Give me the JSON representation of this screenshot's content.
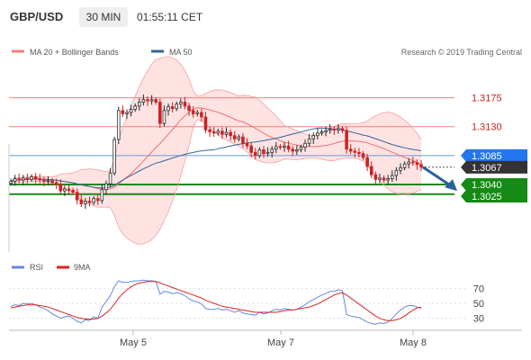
{
  "header": {
    "symbol": "GBP/USD",
    "timeframe": "30 MIN",
    "time": "01:55:11 CET"
  },
  "legend_top": [
    {
      "label": "MA 20 + Bollinger Bands",
      "color": "#f08080"
    },
    {
      "label": "MA 50",
      "color": "#336699"
    }
  ],
  "credit": "Research © 2019 Trading Central",
  "colors": {
    "ma20": "#f07070",
    "bollinger_fill": "#ffe0e0",
    "ma50": "#336699",
    "candle_up": "#2a2a2a",
    "candle_down": "#cc2222",
    "resistance": "#f08080",
    "support": "#1a8a1a",
    "pivot": "#6699dd",
    "rsi": "#6688dd",
    "rsi_ma": "#dd2222",
    "arrow": "#2a5f9e"
  },
  "price_levels": [
    {
      "value": "1.3175",
      "kind": "resistance"
    },
    {
      "value": "1.3130",
      "kind": "resistance"
    },
    {
      "value": "1.3085",
      "kind": "pivot"
    },
    {
      "value": "1.3067",
      "kind": "current"
    },
    {
      "value": "1.3040",
      "kind": "support"
    },
    {
      "value": "1.3025",
      "kind": "support"
    }
  ],
  "rsi_legend": [
    {
      "label": "RSI",
      "color": "#6688dd"
    },
    {
      "label": "9MA",
      "color": "#dd2222"
    }
  ],
  "rsi_ticks": [
    "70",
    "50",
    "30"
  ],
  "x_labels": [
    "May 5",
    "May 7",
    "May 8"
  ],
  "chart_data": [
    {
      "type": "candlestick",
      "title": "GBP/USD",
      "timeframe": "30 MIN",
      "ylim": [
        1.2935,
        1.3215
      ],
      "x_ticks": [
        "May 5",
        "May 7",
        "May 8"
      ],
      "close": [
        1.3045,
        1.3049,
        1.3047,
        1.305,
        1.3048,
        1.3052,
        1.3049,
        1.3047,
        1.3045,
        1.3046,
        1.3043,
        1.304,
        1.303,
        1.3033,
        1.3031,
        1.3028,
        1.3016,
        1.301,
        1.3014,
        1.3012,
        1.3018,
        1.3015,
        1.3032,
        1.3041,
        1.3058,
        1.311,
        1.3155,
        1.315,
        1.3152,
        1.3157,
        1.3162,
        1.3168,
        1.3172,
        1.317,
        1.3172,
        1.3168,
        1.3135,
        1.3155,
        1.3161,
        1.3158,
        1.3165,
        1.3168,
        1.3162,
        1.3155,
        1.315,
        1.3152,
        1.3145,
        1.3125,
        1.3122,
        1.312,
        1.3123,
        1.3118,
        1.3121,
        1.3116,
        1.3111,
        1.3114,
        1.3104,
        1.31,
        1.309,
        1.3085,
        1.3094,
        1.3088,
        1.309,
        1.3095,
        1.3099,
        1.3098,
        1.31,
        1.3095,
        1.3092,
        1.3094,
        1.3098,
        1.3104,
        1.3111,
        1.3116,
        1.312,
        1.3122,
        1.3124,
        1.3126,
        1.3125,
        1.3127,
        1.3124,
        1.3095,
        1.3092,
        1.309,
        1.3088,
        1.3082,
        1.3068,
        1.3055,
        1.3048,
        1.305,
        1.3047,
        1.3049,
        1.3054,
        1.3062,
        1.3066,
        1.3072,
        1.3075,
        1.3074,
        1.3071,
        1.3067
      ],
      "open_high_low_note": "OHLC derived from closes for rendering",
      "overlays": [
        {
          "name": "MA 20 + Bollinger Bands"
        },
        {
          "name": "MA 50"
        }
      ]
    },
    {
      "type": "line",
      "title": "RSI",
      "ylim": [
        20,
        80
      ],
      "y_ticks": [
        70,
        50,
        30
      ],
      "series": [
        {
          "name": "RSI",
          "values": [
            46,
            48,
            47,
            50,
            49,
            50,
            48,
            45,
            43,
            40,
            36,
            33,
            30,
            32,
            33,
            30,
            26,
            24,
            28,
            27,
            32,
            30,
            45,
            52,
            60,
            72,
            80,
            78,
            78,
            79,
            80,
            80,
            81,
            80,
            80,
            79,
            62,
            66,
            65,
            63,
            64,
            63,
            60,
            56,
            53,
            52,
            49,
            43,
            42,
            42,
            43,
            41,
            42,
            40,
            38,
            40,
            37,
            36,
            35,
            34,
            38,
            36,
            37,
            40,
            42,
            41,
            43,
            42,
            41,
            42,
            45,
            48,
            52,
            55,
            58,
            61,
            63,
            66,
            66,
            68,
            67,
            35,
            33,
            32,
            31,
            28,
            25,
            23,
            22,
            24,
            23,
            25,
            30,
            36,
            41,
            45,
            47,
            47,
            45,
            43
          ]
        },
        {
          "name": "9MA",
          "values": [
            44,
            45,
            46,
            47,
            48,
            48,
            48,
            47,
            46,
            45,
            43,
            41,
            39,
            37,
            35,
            33,
            31,
            30,
            29,
            29,
            29,
            30,
            33,
            37,
            42,
            49,
            57,
            63,
            68,
            72,
            75,
            77,
            78,
            79,
            79,
            79,
            77,
            75,
            73,
            71,
            69,
            67,
            65,
            63,
            61,
            59,
            57,
            54,
            52,
            50,
            48,
            46,
            45,
            44,
            43,
            42,
            41,
            40,
            39,
            38,
            38,
            38,
            38,
            38,
            38,
            39,
            40,
            41,
            41,
            42,
            43,
            44,
            45,
            47,
            49,
            52,
            55,
            58,
            61,
            63,
            64,
            61,
            57,
            53,
            49,
            45,
            41,
            37,
            33,
            30,
            28,
            27,
            27,
            28,
            30,
            33,
            37,
            41,
            44,
            45
          ]
        }
      ]
    }
  ]
}
